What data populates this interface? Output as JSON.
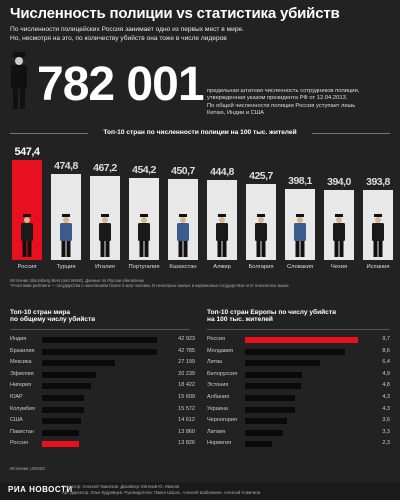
{
  "title": "Численность полиции vs статистика убийств",
  "subtitle_1": "По численности полицейских Россия занимает одно из первых мест в мире.",
  "subtitle_2": "Но, несмотря на это, по количеству убийств она тоже в числе лидеров",
  "big_number": "782 001",
  "big_note": [
    "предельная штатная численность сотрудников полиции,",
    "утвержденная указом президента РФ от 12.04.2013.",
    "По общей численности полиции Россия уступает лишь",
    "Китаю, Индии и США"
  ],
  "police_section_title": "Топ-10 стран по численности полиции на 100 тыс. жителей",
  "police_chart": {
    "type": "bar",
    "categories": [
      "Россия",
      "Турция",
      "Италия",
      "Португалия",
      "Казахстан",
      "Алжир",
      "Болгария",
      "Словакия",
      "Чехия",
      "Испания"
    ],
    "values": [
      547.4,
      474.8,
      467.2,
      454.2,
      450.7,
      444.8,
      425.7,
      398.1,
      394.0,
      393.8
    ],
    "labels": [
      "547,4",
      "474,8",
      "467,2",
      "454,2",
      "450,7",
      "444,8",
      "425,7",
      "398,1",
      "394,0",
      "393,8"
    ],
    "highlight": 0,
    "colors": {
      "highlight": "#e8101e",
      "normal": "#e8e8e8"
    }
  },
  "source_1": "Источник: Bloomberg Best (and Worst). Данные по России обновлены",
  "source_2": "*Участники рейтинга — государства с населением более 5 млн человек. В некоторых малых и карликовых государствах этот показатель выше",
  "world_section_title": [
    "Топ-10 стран мира",
    "по общему числу убийств"
  ],
  "world_chart": {
    "type": "bar",
    "categories": [
      "Индия",
      "Бразилия",
      "Мексика",
      "Эфиопия",
      "Нигерия",
      "ЮАР",
      "Колумбия",
      "США",
      "Пакистан",
      "Россия"
    ],
    "values": [
      42923,
      42785,
      27199,
      20239,
      18422,
      15609,
      15572,
      14612,
      13860,
      13826
    ],
    "labels": [
      "42 923",
      "42 785",
      "27 199",
      "20 239",
      "18 422",
      "15 609",
      "15 572",
      "14 612",
      "13 860",
      "13 826"
    ],
    "highlight": 9,
    "xlim": [
      0,
      42923
    ]
  },
  "europe_section_title": [
    "Топ-10 стран Европы по числу убийств",
    "на 100 тыс. жителей"
  ],
  "europe_chart": {
    "type": "bar",
    "categories": [
      "Россия",
      "Молдавия",
      "Литва",
      "Белоруссия",
      "Эстония",
      "Албания",
      "Украина",
      "Черногория",
      "Латвия",
      "Норвегия"
    ],
    "values": [
      9.7,
      8.6,
      6.4,
      4.9,
      4.8,
      4.3,
      4.3,
      3.6,
      3.3,
      2.3
    ],
    "labels": [
      "9,7",
      "8,6",
      "6,4",
      "4,9",
      "4,8",
      "4,3",
      "4,3",
      "3,6",
      "3,3",
      "2,3"
    ],
    "highlight": 0,
    "xlim": [
      0,
      9.7
    ]
  },
  "source_3": "Источник: UNODC",
  "logo": "РИА НОВОСТИ",
  "credits_1": "Редактор: Алексей Тиматков. Дизайнер: Евгений Ю. Иванов",
  "credits_2": "Арт-директор: Илья Кудрявцев. Руководители: Павел Шорох. Алексей Шаблинкин. Алексей Новичков."
}
